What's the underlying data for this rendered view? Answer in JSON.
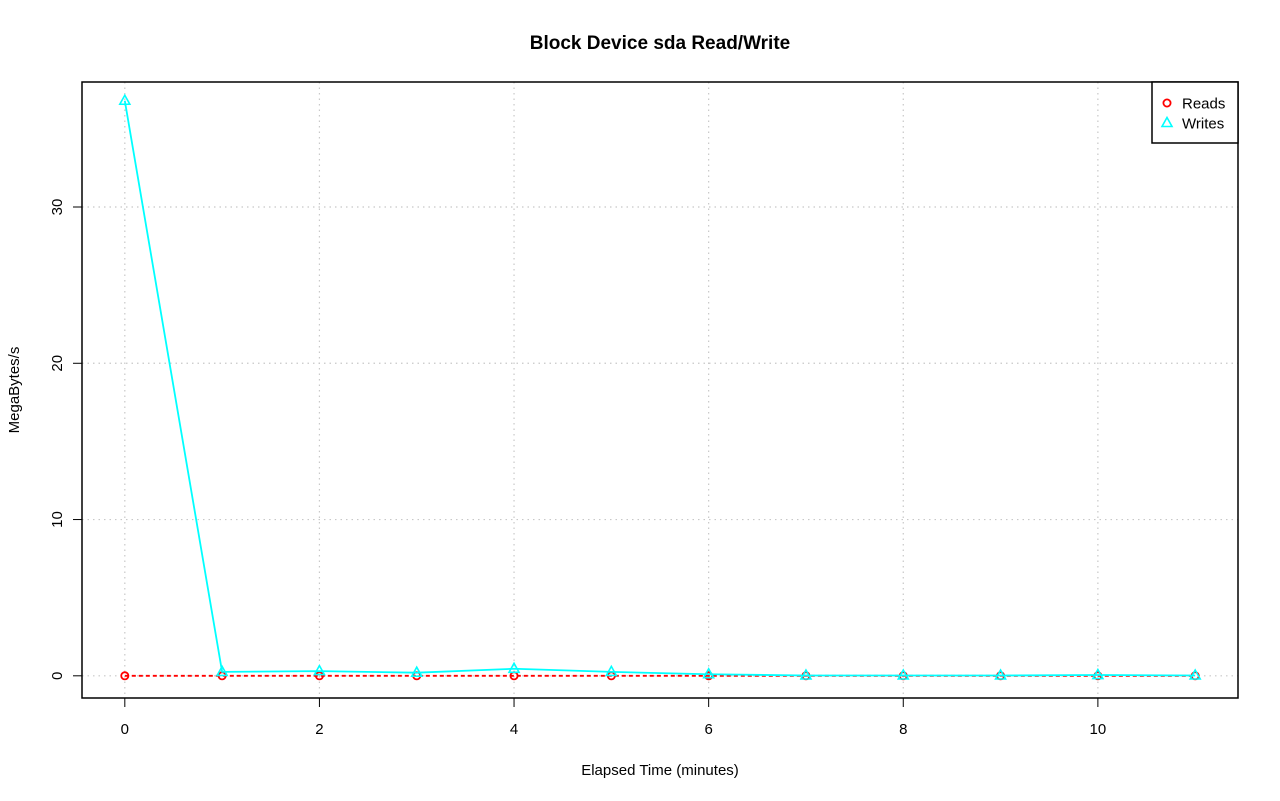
{
  "chart_data": {
    "type": "line",
    "title": "Block Device sda Read/Write",
    "xlabel": "Elapsed Time (minutes)",
    "ylabel": "MegaBytes/s",
    "xlim": [
      -0.44,
      11.44
    ],
    "ylim": [
      -1.42,
      38.0
    ],
    "xticks": [
      0,
      2,
      4,
      6,
      8,
      10
    ],
    "yticks": [
      0,
      10,
      20,
      30
    ],
    "grid": true,
    "legend_position": "top-right",
    "x": [
      0,
      1,
      2,
      3,
      4,
      5,
      6,
      7,
      8,
      9,
      10,
      11
    ],
    "series": [
      {
        "name": "Reads",
        "color": "#ff0000",
        "marker": "circle",
        "line_style": "dashed",
        "values": [
          0,
          0,
          0,
          0,
          0,
          0,
          0,
          0,
          0,
          0,
          0,
          0
        ]
      },
      {
        "name": "Writes",
        "color": "#00ffff",
        "marker": "triangle",
        "line_style": "solid",
        "values": [
          36.8,
          0.25,
          0.3,
          0.2,
          0.45,
          0.25,
          0.1,
          0.02,
          0.02,
          0.02,
          0.05,
          0.02
        ]
      }
    ]
  }
}
